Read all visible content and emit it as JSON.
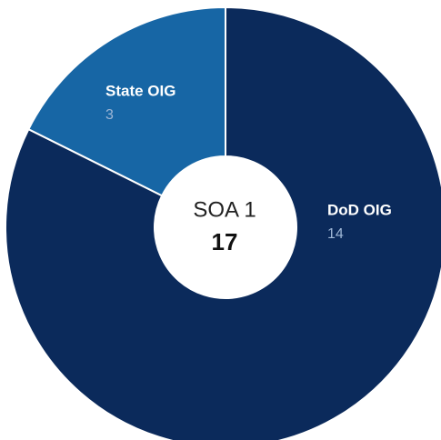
{
  "chart_data": {
    "type": "donut",
    "categories": [
      "DoD OIG",
      "State OIG"
    ],
    "values": [
      14,
      3
    ],
    "colors": [
      "#0b2a5b",
      "#1766a5"
    ],
    "center_label": "SOA 1",
    "center_value": 17
  }
}
